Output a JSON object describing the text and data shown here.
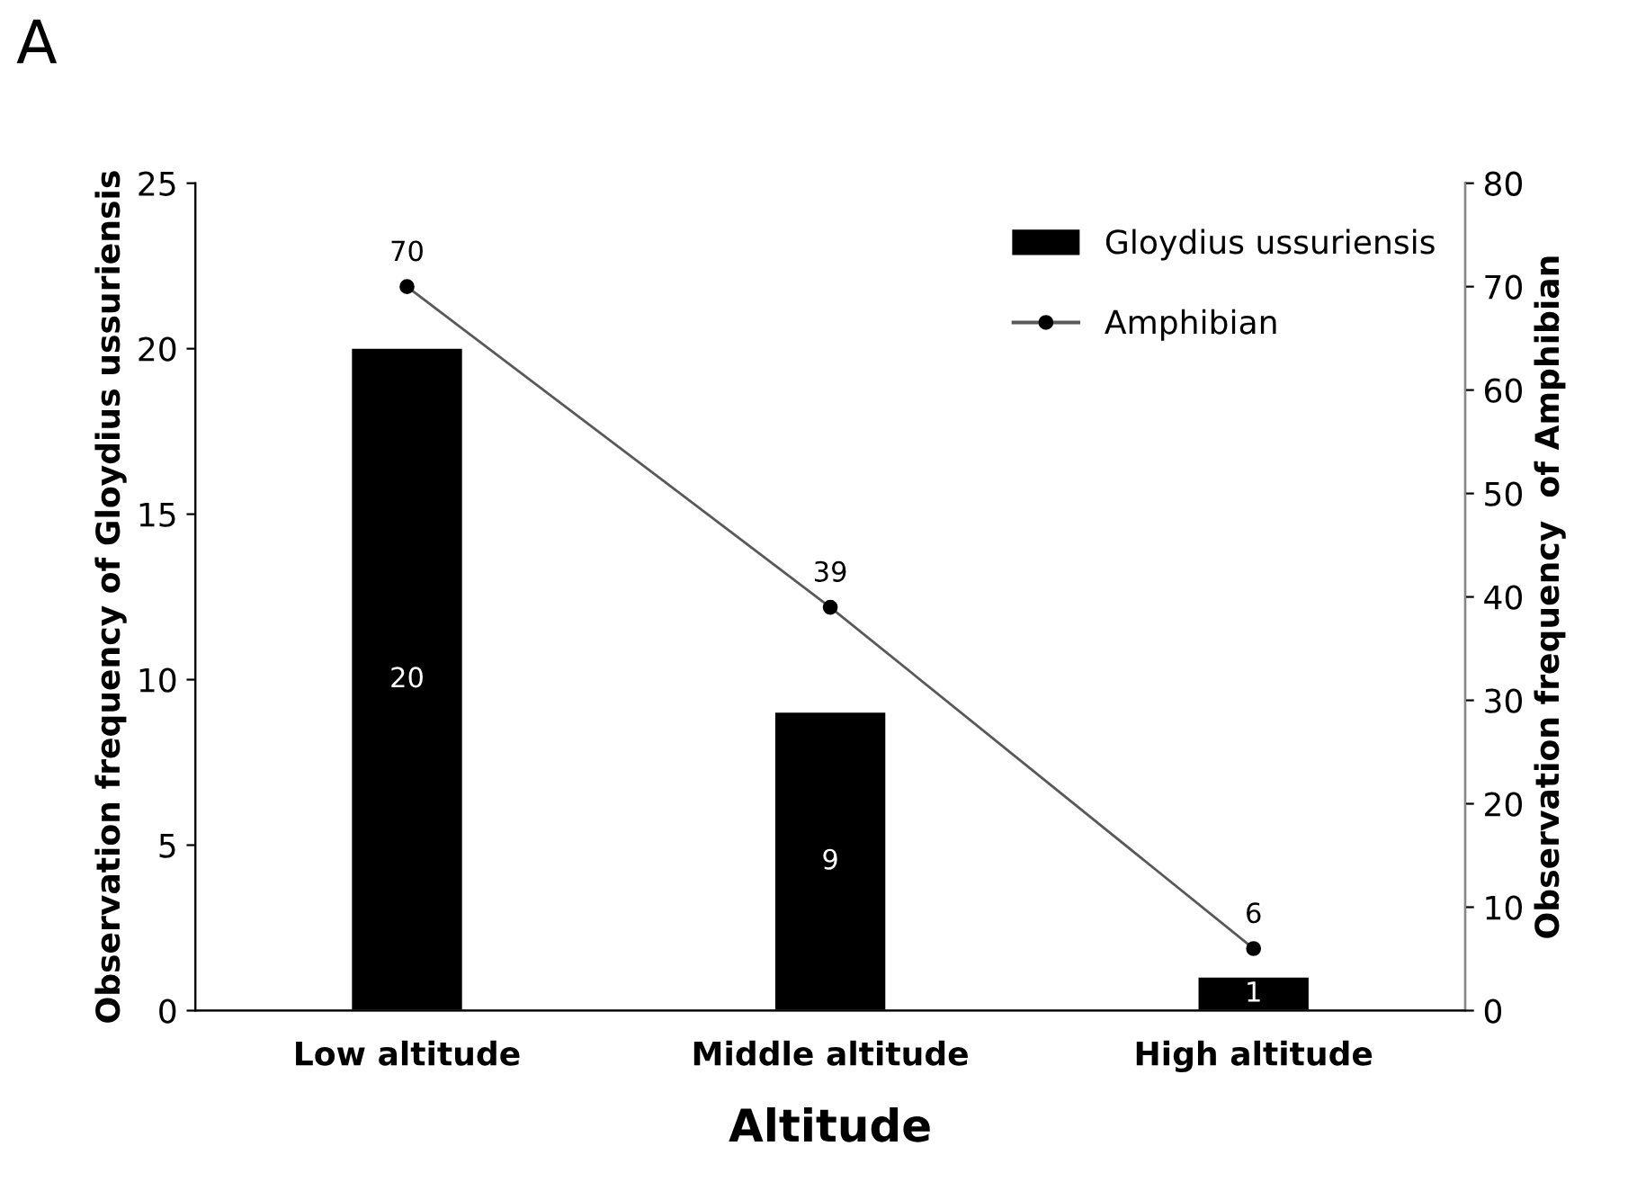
{
  "chart_data": {
    "type": "bar",
    "xlabel": "Altitude",
    "ylabel": "Observation frequency of Gloydius ussuriensis",
    "y2label": "Observation frequency  of Amphibian",
    "annotations": [
      "A"
    ],
    "categories": [
      "Low altitude",
      "Middle altitude",
      "High altitude"
    ],
    "series": [
      {
        "name": "Gloydius ussuriensis",
        "color": "#000000",
        "values": [
          20,
          9,
          1
        ]
      },
      {
        "name": "Amphibian",
        "type": "line",
        "axis": "y2",
        "color": "#595959",
        "marker": "circle",
        "values": [
          70,
          39,
          6
        ]
      }
    ],
    "ylim": [
      0,
      25
    ],
    "yticks": [
      0,
      5,
      10,
      15,
      20,
      25
    ],
    "y2lim": [
      0,
      80
    ],
    "y2ticks": [
      0,
      10,
      20,
      30,
      40,
      50,
      60,
      70,
      80
    ],
    "data_labels": true,
    "legend": "top right",
    "grid": false
  }
}
